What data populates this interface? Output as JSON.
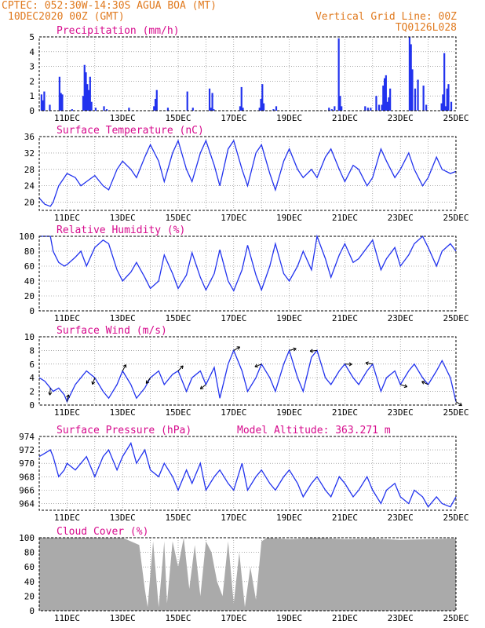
{
  "header": {
    "line1": "CPTEC:    052:30W-14:30S   AGUA BOA (MT)",
    "line2": "10DEC2020 00Z (GMT)",
    "right1": "Vertical Grid Line: 00Z",
    "right2": "TQ0126L028"
  },
  "colors": {
    "line": "#2233ee",
    "bar": "#2233ee",
    "cloud": "#aaaaaa",
    "header": "#e07a1f",
    "title": "#d60a8c"
  },
  "x_labels": [
    "11DEC",
    "13DEC",
    "15DEC",
    "17DEC",
    "19DEC",
    "21DEC",
    "23DEC",
    "25DEC"
  ],
  "chart_data": [
    {
      "id": "precip",
      "type": "bar",
      "title": "Precipitation (mm/h)",
      "ylim": [
        0,
        5
      ],
      "yticks": [
        0,
        1,
        2,
        3,
        4,
        5
      ],
      "xlim_days": [
        0,
        15
      ],
      "x": [
        0.05,
        0.1,
        0.15,
        0.35,
        0.7,
        0.75,
        0.8,
        1.15,
        1.55,
        1.6,
        1.65,
        1.7,
        1.75,
        1.8,
        1.85,
        2.0,
        2.3,
        2.4,
        3.2,
        4.1,
        4.15,
        4.2,
        4.6,
        5.3,
        5.5,
        6.1,
        6.15,
        6.2,
        6.25,
        7.2,
        7.25,
        7.3,
        7.9,
        7.95,
        8.0,
        8.05,
        8.4,
        8.5,
        10.4,
        10.5,
        10.6,
        10.75,
        10.8,
        10.85,
        11.7,
        11.8,
        11.9,
        12.1,
        12.2,
        12.3,
        12.35,
        12.4,
        12.45,
        12.5,
        12.55,
        12.6,
        13.3,
        13.35,
        13.4,
        13.5,
        13.6,
        13.8,
        13.9,
        14.45,
        14.5,
        14.55,
        14.6,
        14.65,
        14.7,
        14.8
      ],
      "values": [
        1.1,
        0.7,
        1.3,
        0.4,
        2.3,
        1.2,
        1.1,
        0.1,
        1.0,
        3.1,
        2.6,
        1.8,
        1.4,
        2.3,
        0.6,
        0.2,
        0.3,
        0.1,
        0.2,
        0.3,
        0.8,
        1.4,
        0.2,
        1.3,
        0.2,
        1.5,
        0.2,
        1.2,
        0.1,
        0.3,
        1.6,
        0.2,
        0.2,
        0.8,
        1.8,
        0.5,
        0.1,
        0.3,
        0.2,
        0.1,
        0.3,
        4.9,
        1.0,
        0.3,
        0.3,
        0.2,
        0.2,
        1.0,
        0.4,
        0.4,
        1.7,
        2.2,
        2.4,
        0.6,
        0.9,
        1.5,
        5.0,
        4.5,
        2.8,
        1.5,
        2.1,
        1.7,
        0.4,
        0.5,
        1.1,
        3.9,
        0.3,
        1.5,
        1.8,
        0.6
      ]
    },
    {
      "id": "temp",
      "type": "line",
      "title": "Surface Temperature (nC)",
      "ylim": [
        18,
        36
      ],
      "yticks": [
        20,
        24,
        28,
        32,
        36
      ],
      "xlim_days": [
        0,
        15
      ],
      "x": [
        0,
        0.2,
        0.4,
        0.5,
        0.7,
        0.9,
        1.0,
        1.3,
        1.5,
        1.7,
        2.0,
        2.3,
        2.5,
        2.8,
        3.0,
        3.3,
        3.5,
        3.8,
        4.0,
        4.3,
        4.5,
        4.8,
        5.0,
        5.3,
        5.5,
        5.8,
        6.0,
        6.3,
        6.5,
        6.8,
        7.0,
        7.3,
        7.5,
        7.8,
        8.0,
        8.3,
        8.5,
        8.8,
        9.0,
        9.3,
        9.5,
        9.8,
        10.0,
        10.3,
        10.5,
        10.8,
        11.0,
        11.3,
        11.5,
        11.8,
        12.0,
        12.3,
        12.5,
        12.8,
        13.0,
        13.3,
        13.5,
        13.8,
        14.0,
        14.3,
        14.5,
        14.8,
        15.0
      ],
      "values": [
        21,
        19.5,
        19,
        20,
        24,
        26,
        27,
        26,
        24,
        25,
        26.5,
        24,
        23,
        28,
        30,
        28,
        26,
        31,
        34,
        30,
        25,
        32,
        35,
        28,
        25,
        32,
        35,
        29,
        24,
        33,
        35,
        28,
        24,
        32,
        34,
        27,
        23,
        30,
        33,
        28,
        26,
        28,
        26,
        31,
        33,
        28,
        25,
        29,
        28,
        24,
        26,
        33,
        30,
        26,
        28,
        32,
        28,
        24,
        26,
        31,
        28,
        27,
        27.5
      ]
    },
    {
      "id": "rh",
      "type": "line",
      "title": "Relative Humidity (%)",
      "ylim": [
        0,
        100
      ],
      "yticks": [
        0,
        20,
        40,
        60,
        80,
        100
      ],
      "xlim_days": [
        0,
        15
      ],
      "x": [
        0,
        0.2,
        0.4,
        0.5,
        0.7,
        0.9,
        1.0,
        1.3,
        1.5,
        1.7,
        2.0,
        2.3,
        2.5,
        2.8,
        3.0,
        3.3,
        3.5,
        3.8,
        4.0,
        4.3,
        4.5,
        4.8,
        5.0,
        5.3,
        5.5,
        5.8,
        6.0,
        6.3,
        6.5,
        6.8,
        7.0,
        7.3,
        7.5,
        7.8,
        8.0,
        8.3,
        8.5,
        8.8,
        9.0,
        9.3,
        9.5,
        9.8,
        10.0,
        10.3,
        10.5,
        10.8,
        11.0,
        11.3,
        11.5,
        11.8,
        12.0,
        12.3,
        12.5,
        12.8,
        13.0,
        13.3,
        13.5,
        13.8,
        14.0,
        14.3,
        14.5,
        14.8,
        15.0
      ],
      "values": [
        100,
        100,
        100,
        80,
        65,
        60,
        62,
        72,
        80,
        60,
        85,
        95,
        90,
        55,
        40,
        52,
        65,
        45,
        30,
        40,
        75,
        50,
        30,
        48,
        78,
        45,
        28,
        50,
        82,
        40,
        27,
        55,
        88,
        48,
        28,
        60,
        90,
        50,
        40,
        60,
        80,
        55,
        100,
        70,
        45,
        75,
        90,
        65,
        70,
        85,
        95,
        55,
        70,
        85,
        60,
        75,
        90,
        100,
        85,
        60,
        80,
        90,
        80
      ]
    },
    {
      "id": "wind",
      "type": "line",
      "title": "Surface Wind (m/s)",
      "ylim": [
        0,
        10
      ],
      "yticks": [
        0,
        2,
        4,
        6,
        8,
        10
      ],
      "xlim_days": [
        0,
        15
      ],
      "x": [
        0,
        0.2,
        0.4,
        0.5,
        0.7,
        0.9,
        1.0,
        1.3,
        1.5,
        1.7,
        2.0,
        2.3,
        2.5,
        2.8,
        3.0,
        3.3,
        3.5,
        3.8,
        4.0,
        4.3,
        4.5,
        4.8,
        5.0,
        5.3,
        5.5,
        5.8,
        6.0,
        6.3,
        6.5,
        6.8,
        7.0,
        7.3,
        7.5,
        7.8,
        8.0,
        8.3,
        8.5,
        8.8,
        9.0,
        9.3,
        9.5,
        9.8,
        10.0,
        10.3,
        10.5,
        10.8,
        11.0,
        11.3,
        11.5,
        11.8,
        12.0,
        12.3,
        12.5,
        12.8,
        13.0,
        13.3,
        13.5,
        13.8,
        14.0,
        14.3,
        14.5,
        14.8,
        15.0
      ],
      "values": [
        4,
        3.5,
        2.5,
        2,
        2.5,
        1.5,
        0.5,
        3,
        4,
        5,
        4,
        2,
        1,
        3,
        5,
        3,
        1,
        2.5,
        4,
        5,
        3,
        4.5,
        5,
        2,
        4,
        5,
        3,
        5.5,
        1,
        6,
        8,
        5,
        2,
        4,
        6,
        4,
        2,
        6,
        8,
        4,
        2,
        7,
        8,
        4,
        3,
        5,
        6,
        4,
        3,
        5,
        6,
        2,
        4,
        5,
        3,
        5,
        6,
        4,
        3,
        5,
        6.5,
        4,
        0.5
      ]
    },
    {
      "id": "pres",
      "type": "line",
      "title": "Surface Pressure (hPa)",
      "annotation": "Model Altitude: 363.271 m",
      "ylim": [
        963,
        974
      ],
      "yticks": [
        964,
        966,
        968,
        970,
        972,
        974
      ],
      "xlim_days": [
        0,
        15
      ],
      "x": [
        0,
        0.2,
        0.4,
        0.5,
        0.7,
        0.9,
        1.0,
        1.3,
        1.5,
        1.7,
        2.0,
        2.3,
        2.5,
        2.8,
        3.0,
        3.3,
        3.5,
        3.8,
        4.0,
        4.3,
        4.5,
        4.8,
        5.0,
        5.3,
        5.5,
        5.8,
        6.0,
        6.3,
        6.5,
        6.8,
        7.0,
        7.3,
        7.5,
        7.8,
        8.0,
        8.3,
        8.5,
        8.8,
        9.0,
        9.3,
        9.5,
        9.8,
        10.0,
        10.3,
        10.5,
        10.8,
        11.0,
        11.3,
        11.5,
        11.8,
        12.0,
        12.3,
        12.5,
        12.8,
        13.0,
        13.3,
        13.5,
        13.8,
        14.0,
        14.3,
        14.5,
        14.8,
        15.0
      ],
      "values": [
        971,
        971.5,
        972,
        971,
        968,
        969,
        970,
        969,
        970,
        971,
        968,
        971,
        972,
        969,
        971,
        973,
        970,
        972,
        969,
        968,
        970,
        968,
        966,
        969,
        967,
        970,
        966,
        968,
        969,
        967,
        966,
        970,
        966,
        968,
        969,
        967,
        966,
        968,
        969,
        967,
        965,
        967,
        968,
        966,
        965,
        968,
        967,
        965,
        966,
        968,
        966,
        964,
        966,
        967,
        965,
        964,
        966,
        965,
        963.5,
        965,
        964,
        963.5,
        965
      ]
    },
    {
      "id": "cloud",
      "type": "area",
      "title": "Cloud Cover (%)",
      "ylim": [
        0,
        100
      ],
      "yticks": [
        0,
        20,
        40,
        60,
        80,
        100
      ],
      "xlim_days": [
        0,
        15
      ],
      "x": [
        0,
        1,
        2,
        3,
        3.6,
        3.8,
        3.9,
        4.1,
        4.3,
        4.5,
        4.6,
        4.8,
        5.0,
        5.2,
        5.4,
        5.6,
        5.8,
        6.0,
        6.2,
        6.4,
        6.6,
        6.8,
        7.0,
        7.2,
        7.4,
        7.6,
        7.8,
        8.0,
        8.2,
        9,
        10,
        11,
        12,
        13,
        14,
        15
      ],
      "values": [
        100,
        100,
        100,
        100,
        90,
        30,
        5,
        95,
        5,
        95,
        10,
        95,
        60,
        100,
        30,
        90,
        20,
        95,
        80,
        40,
        20,
        95,
        10,
        80,
        5,
        60,
        15,
        95,
        100,
        98,
        100,
        98,
        99,
        97,
        98,
        99
      ]
    }
  ]
}
